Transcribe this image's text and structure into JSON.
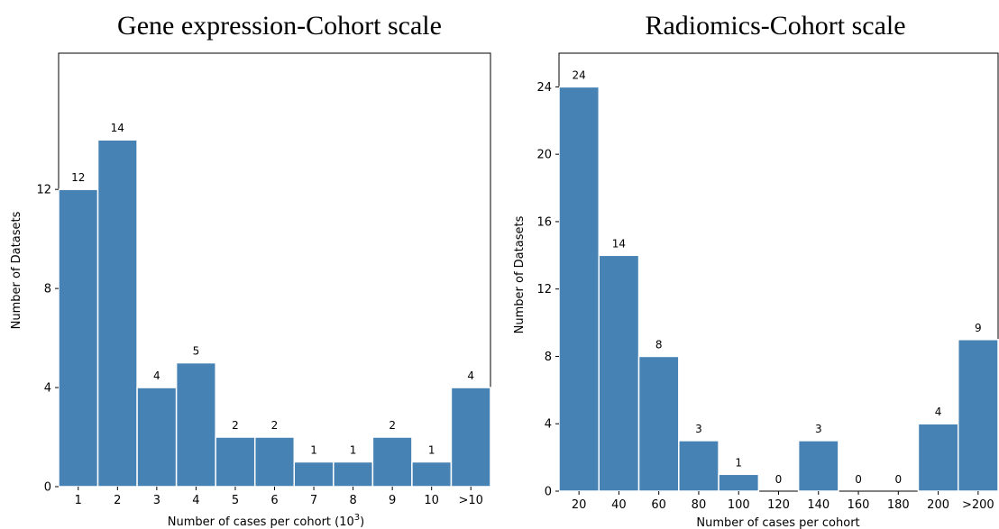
{
  "chart_data": [
    {
      "type": "bar",
      "title": "Gene expression-Cohort scale",
      "xlabel": "Number of cases per cohort (10",
      "xlabel_sup": "3",
      "xlabel_end": ")",
      "ylabel": "Number of Datasets",
      "categories": [
        "1",
        "2",
        "3",
        "4",
        "5",
        "6",
        "7",
        "8",
        "9",
        "10",
        ">10"
      ],
      "values": [
        12,
        14,
        4,
        5,
        2,
        2,
        1,
        1,
        2,
        1,
        4
      ],
      "data_labels": [
        "12",
        "14",
        "4",
        "5",
        "2",
        "2",
        "1",
        "1",
        "2",
        "1",
        "4"
      ],
      "yticks": [
        0,
        4,
        8,
        12
      ],
      "ytick_labels": [
        "0",
        "4",
        "8",
        "12"
      ],
      "ylim": [
        0,
        17.5
      ],
      "bar_color": "#4682b4",
      "grid": false
    },
    {
      "type": "bar",
      "title": "Radiomics-Cohort scale",
      "xlabel": "Number of cases per cohort",
      "ylabel": "Number of Datasets",
      "categories": [
        "20",
        "40",
        "60",
        "80",
        "100",
        "120",
        "140",
        "160",
        "180",
        "200",
        ">200"
      ],
      "values": [
        24,
        14,
        8,
        3,
        1,
        0,
        3,
        0,
        0,
        4,
        9
      ],
      "data_labels": [
        "24",
        "14",
        "8",
        "3",
        "1",
        "0",
        "3",
        "0",
        "0",
        "4",
        "9"
      ],
      "yticks": [
        0,
        4,
        8,
        12,
        16,
        20,
        24
      ],
      "ytick_labels": [
        "0",
        "4",
        "8",
        "12",
        "16",
        "20",
        "24"
      ],
      "ylim": [
        0,
        26
      ],
      "bar_color": "#4682b4",
      "grid": false
    }
  ]
}
